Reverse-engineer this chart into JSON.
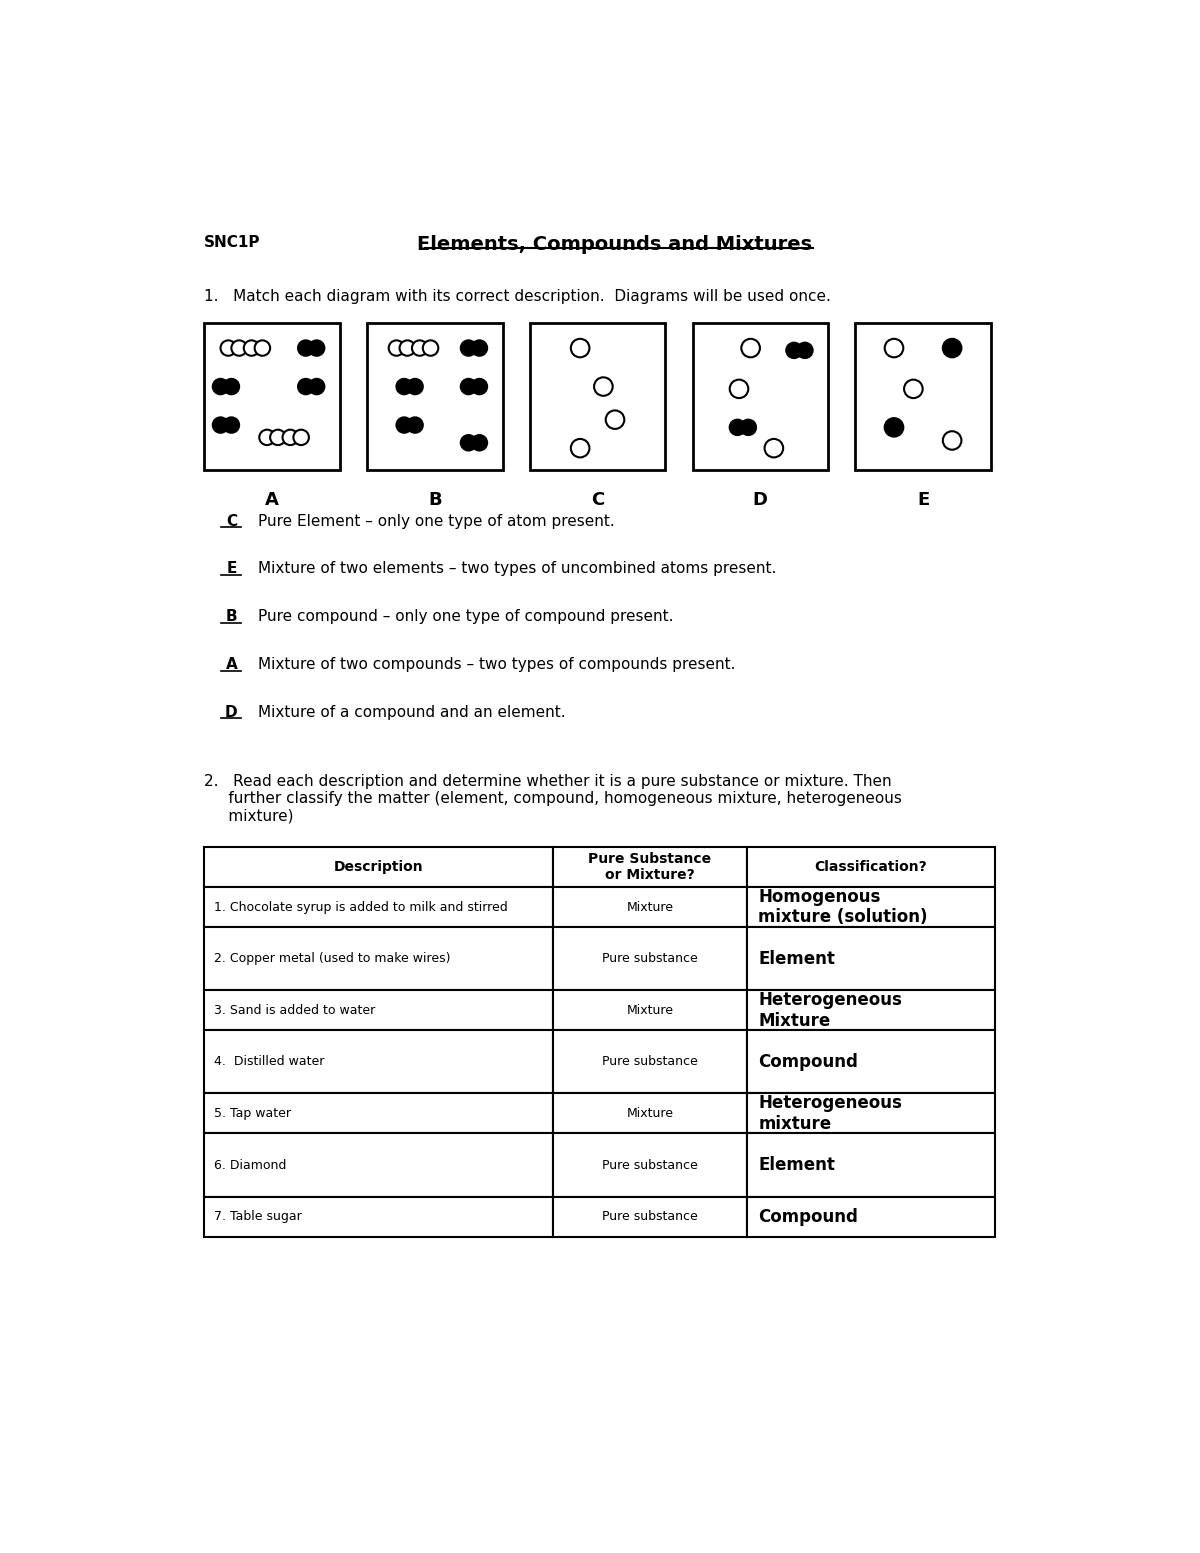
{
  "title": "Elements, Compounds and Mixtures",
  "subtitle": "SNC1P",
  "q1_text": "1.   Match each diagram with its correct description.  Diagrams will be used once.",
  "diagram_labels": [
    "A",
    "B",
    "C",
    "D",
    "E"
  ],
  "answers": [
    {
      "letter": "C",
      "text": "Pure Element – only one type of atom present."
    },
    {
      "letter": "E",
      "text": "Mixture of two elements – two types of uncombined atoms present."
    },
    {
      "letter": "B",
      "text": "Pure compound – only one type of compound present."
    },
    {
      "letter": "A",
      "text": "Mixture of two compounds – two types of compounds present."
    },
    {
      "letter": "D",
      "text": "Mixture of a compound and an element."
    }
  ],
  "q2_text": "2.   Read each description and determine whether it is a pure substance or mixture. Then\n     further classify the matter (element, compound, homogeneous mixture, heterogeneous\n     mixture)",
  "table_headers": [
    "Description",
    "Pure Substance\nor Mixture?",
    "Classification?"
  ],
  "table_rows": [
    [
      "1. Chocolate syrup is added to milk and stirred",
      "Mixture",
      "Homogenous\nmixture (solution)"
    ],
    [
      "2. Copper metal (used to make wires)",
      "Pure substance",
      "Element"
    ],
    [
      "3. Sand is added to water",
      "Mixture",
      "Heterogeneous\nMixture"
    ],
    [
      "4.  Distilled water",
      "Pure substance",
      "Compound"
    ],
    [
      "5. Tap water",
      "Mixture",
      "Heterogeneous\nmixture"
    ],
    [
      "6. Diamond",
      "Pure substance",
      "Element"
    ],
    [
      "7. Table sugar",
      "Pure substance",
      "Compound"
    ]
  ],
  "bg_color": "#ffffff",
  "text_color": "#000000"
}
